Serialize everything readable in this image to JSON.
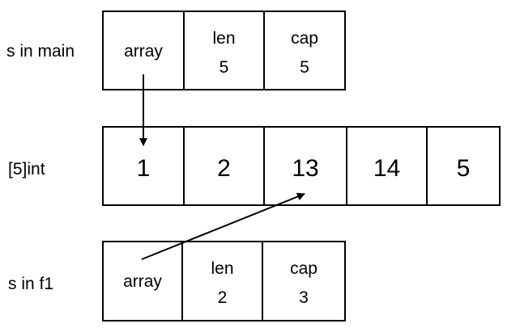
{
  "labels": {
    "s_main": "s in main",
    "array_type": "[5]int",
    "s_f1": "s in f1"
  },
  "s_main": {
    "array_label": "array",
    "len_label": "len",
    "len_value": "5",
    "cap_label": "cap",
    "cap_value": "5"
  },
  "backing_array": [
    "1",
    "2",
    "13",
    "14",
    "5"
  ],
  "s_f1": {
    "array_label": "array",
    "len_label": "len",
    "len_value": "2",
    "cap_label": "cap",
    "cap_value": "3"
  },
  "pointers": [
    {
      "from": "s_main.array",
      "to_index": 0
    },
    {
      "from": "s_f1.array",
      "to_index": 2
    }
  ],
  "colors": {
    "stroke": "#000000",
    "background": "#ffffff"
  }
}
